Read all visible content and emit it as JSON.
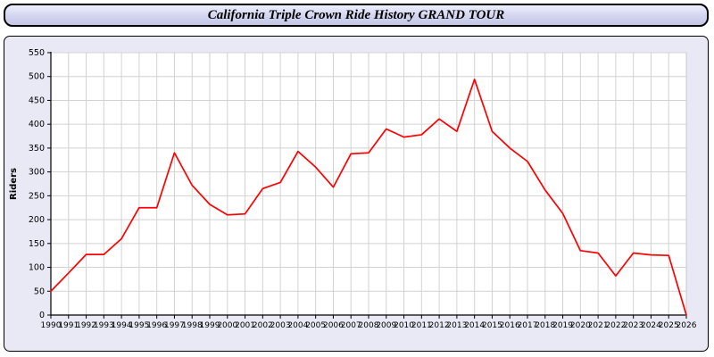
{
  "title": "California Triple Crown Ride History GRAND TOUR",
  "colors": {
    "line": "#ff0000",
    "plot_background": "#ffffff",
    "panel_background": "#e9e9f5",
    "grid": "#d2d2d2",
    "axis": "#000000"
  },
  "chart_data": {
    "type": "line",
    "title": "California Triple Crown Ride History GRAND TOUR",
    "xlabel": "",
    "ylabel": "Riders",
    "ylim": [
      0,
      550
    ],
    "ytick_step": 50,
    "grid": true,
    "legend": "none",
    "line_color": "#ff0000",
    "x": [
      1990,
      1991,
      1992,
      1993,
      1994,
      1995,
      1996,
      1997,
      1998,
      1999,
      2000,
      2001,
      2002,
      2003,
      2004,
      2005,
      2006,
      2007,
      2008,
      2009,
      2010,
      2011,
      2012,
      2013,
      2014,
      2015,
      2016,
      2017,
      2018,
      2019,
      2020,
      2021,
      2022,
      2023,
      2024,
      2025,
      2026
    ],
    "values": [
      50,
      88,
      127,
      127,
      160,
      225,
      225,
      340,
      272,
      232,
      210,
      212,
      265,
      278,
      343,
      310,
      268,
      338,
      340,
      390,
      373,
      378,
      411,
      385,
      494,
      385,
      350,
      322,
      262,
      213,
      135,
      130,
      82,
      130,
      126,
      125,
      0
    ]
  }
}
